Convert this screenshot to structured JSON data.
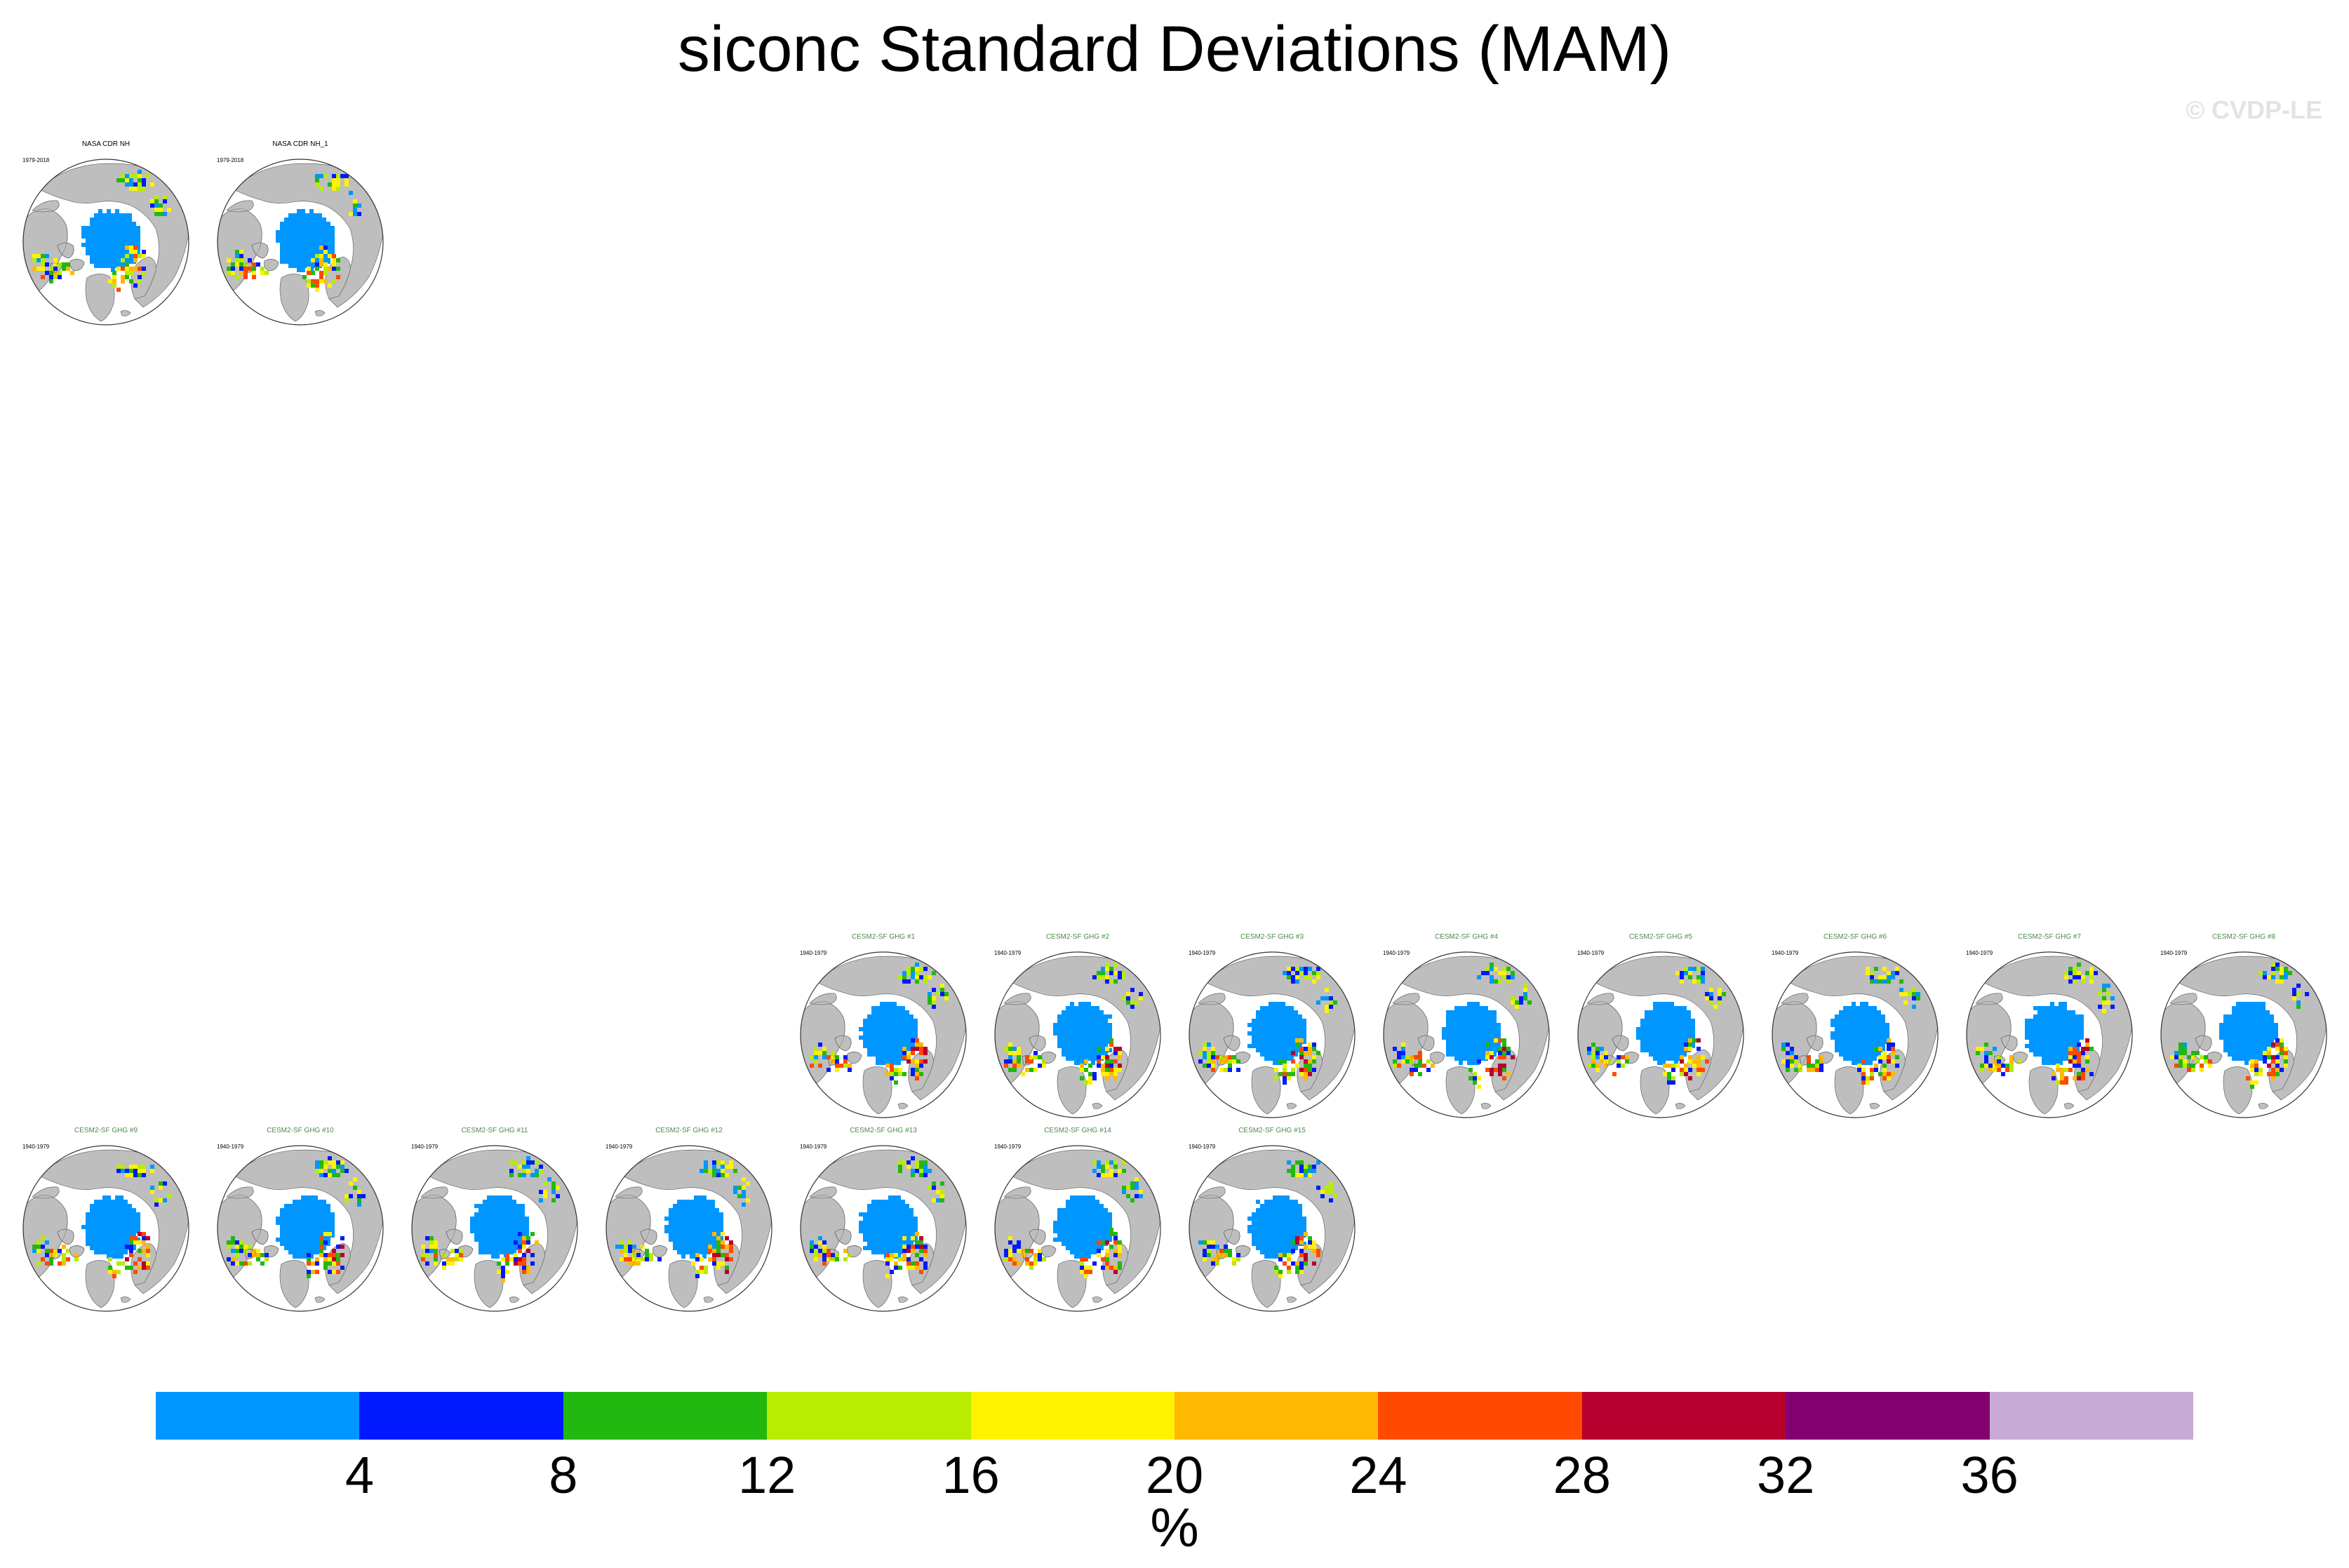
{
  "title": "siconc Standard Deviations (MAM)",
  "watermark": "© CVDP-LE",
  "colors": {
    "land": "#bebebe",
    "ocean": "#ffffff",
    "coast": "#555555",
    "levels": [
      "#0096ff",
      "#0019ff",
      "#22b80f",
      "#b8ec00",
      "#fff200",
      "#ffb900",
      "#ff4a00",
      "#b8002e",
      "#820070",
      "#c8aad6"
    ]
  },
  "colorbar": {
    "ticks": [
      "4",
      "8",
      "12",
      "16",
      "20",
      "24",
      "28",
      "32",
      "36"
    ],
    "unit": "%"
  },
  "observations": [
    {
      "title": "NASA CDR NH",
      "period": "1979-2018"
    },
    {
      "title": "NASA CDR NH_1",
      "period": "1979-2018"
    }
  ],
  "members": [
    {
      "title": "CESM2-SF GHG #1",
      "period": "1940-1979"
    },
    {
      "title": "CESM2-SF GHG #2",
      "period": "1940-1979"
    },
    {
      "title": "CESM2-SF GHG #3",
      "period": "1940-1979"
    },
    {
      "title": "CESM2-SF GHG #4",
      "period": "1940-1979"
    },
    {
      "title": "CESM2-SF GHG #5",
      "period": "1940-1979"
    },
    {
      "title": "CESM2-SF GHG #6",
      "period": "1940-1979"
    },
    {
      "title": "CESM2-SF GHG #7",
      "period": "1940-1979"
    },
    {
      "title": "CESM2-SF GHG #8",
      "period": "1940-1979"
    },
    {
      "title": "CESM2-SF GHG #9",
      "period": "1940-1979"
    },
    {
      "title": "CESM2-SF GHG #10",
      "period": "1940-1979"
    },
    {
      "title": "CESM2-SF GHG #11",
      "period": "1940-1979"
    },
    {
      "title": "CESM2-SF GHG #12",
      "period": "1940-1979"
    },
    {
      "title": "CESM2-SF GHG #13",
      "period": "1940-1979"
    },
    {
      "title": "CESM2-SF GHG #14",
      "period": "1940-1979"
    },
    {
      "title": "CESM2-SF GHG #15",
      "period": "1940-1979"
    }
  ]
}
